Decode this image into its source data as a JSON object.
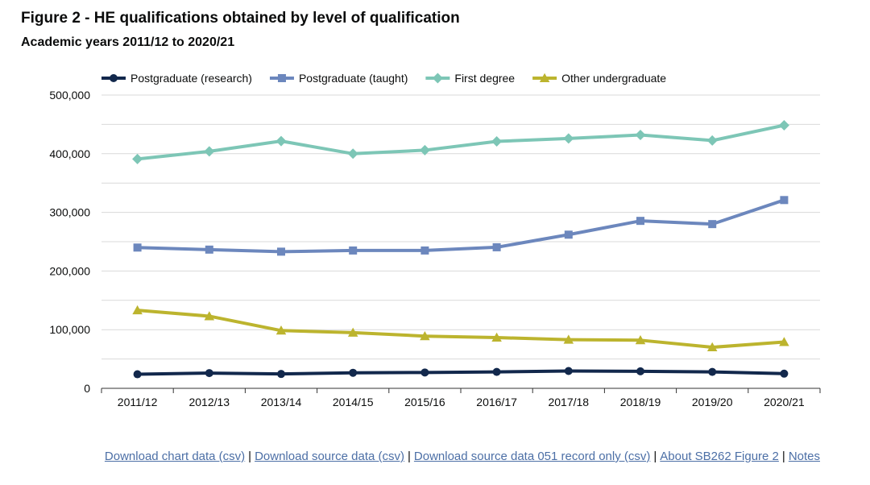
{
  "header": {
    "title": "Figure 2 - HE qualifications obtained by level of qualification",
    "subtitle": "Academic years 2011/12 to 2020/21"
  },
  "chart_data": {
    "type": "line",
    "title": "Figure 2 - HE qualifications obtained by level of qualification",
    "subtitle": "Academic years 2011/12 to 2020/21",
    "xlabel": "",
    "ylabel": "",
    "ylim": [
      0,
      500000
    ],
    "yticks": [
      0,
      100000,
      200000,
      300000,
      400000,
      500000
    ],
    "ytick_labels": [
      "0",
      "100,000",
      "200,000",
      "300,000",
      "400,000",
      "500,000"
    ],
    "grid": true,
    "legend_position": "top",
    "categories": [
      "2011/12",
      "2012/13",
      "2013/14",
      "2014/15",
      "2015/16",
      "2016/17",
      "2017/18",
      "2018/19",
      "2019/20",
      "2020/21"
    ],
    "series": [
      {
        "name": "Postgraduate (research)",
        "color": "#12284c",
        "marker": "circle",
        "values": [
          24000,
          26000,
          24500,
          26500,
          27000,
          28000,
          29500,
          29000,
          28000,
          25000
        ]
      },
      {
        "name": "Postgraduate (taught)",
        "color": "#6c87bd",
        "marker": "square",
        "values": [
          240000,
          236500,
          233000,
          235000,
          235000,
          240500,
          262000,
          285500,
          280000,
          321000
        ]
      },
      {
        "name": "First degree",
        "color": "#7dc6b6",
        "marker": "diamond",
        "values": [
          391000,
          404000,
          421500,
          400000,
          406000,
          421000,
          426000,
          432000,
          422500,
          448500
        ]
      },
      {
        "name": "Other undergraduate",
        "color": "#bcb42e",
        "marker": "triangle",
        "values": [
          133000,
          123000,
          98500,
          95000,
          89000,
          86500,
          83000,
          82000,
          70000,
          79000
        ]
      }
    ]
  },
  "footer": {
    "links": [
      "Download chart data (csv)",
      "Download source data (csv)",
      "Download source data 051 record only (csv)",
      "About SB262 Figure 2",
      "Notes"
    ],
    "separator": "|"
  }
}
